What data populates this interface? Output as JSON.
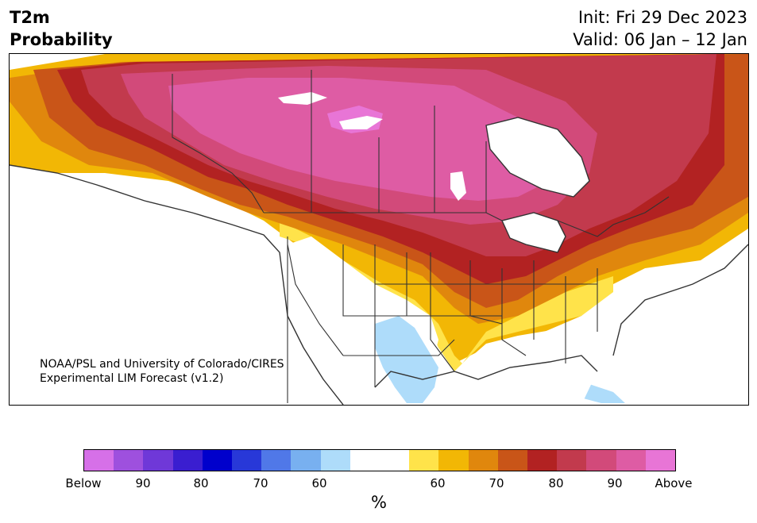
{
  "title": {
    "line1": "T2m",
    "line2": "Probability"
  },
  "init": {
    "line1": "Init: Fri 29 Dec 2023",
    "line2": "Valid: 06 Jan – 12 Jan"
  },
  "credit": {
    "line1": "NOAA/PSL and University of Colorado/CIRES",
    "line2": "Experimental LIM Forecast (v1.2)"
  },
  "colorbar": {
    "unit": "%",
    "colors": [
      "#d670e8",
      "#9e50de",
      "#6f38d8",
      "#3a1ed0",
      "#0000cc",
      "#2838d8",
      "#5078e8",
      "#78b0f0",
      "#aedcfa",
      "#ffffff",
      "#ffffff",
      "#ffe34a",
      "#f2b705",
      "#e0870d",
      "#c95518",
      "#b22222",
      "#c23a4d",
      "#d24a7a",
      "#de5ca4",
      "#e875d6"
    ],
    "ticks": [
      "Below",
      "90",
      "80",
      "70",
      "60",
      "60",
      "70",
      "80",
      "90",
      "Above"
    ]
  },
  "colors": {
    "above_max": "#e875d6",
    "above_90": "#de5ca4",
    "above_85": "#d24a7a",
    "above_80": "#c23a4d",
    "above_75": "#b22222",
    "above_70": "#c95518",
    "above_65": "#e0870d",
    "above_60": "#f2b705",
    "above_55": "#ffe34a",
    "below_55": "#aedcfa",
    "neutral": "#ffffff",
    "border": "#333333"
  }
}
